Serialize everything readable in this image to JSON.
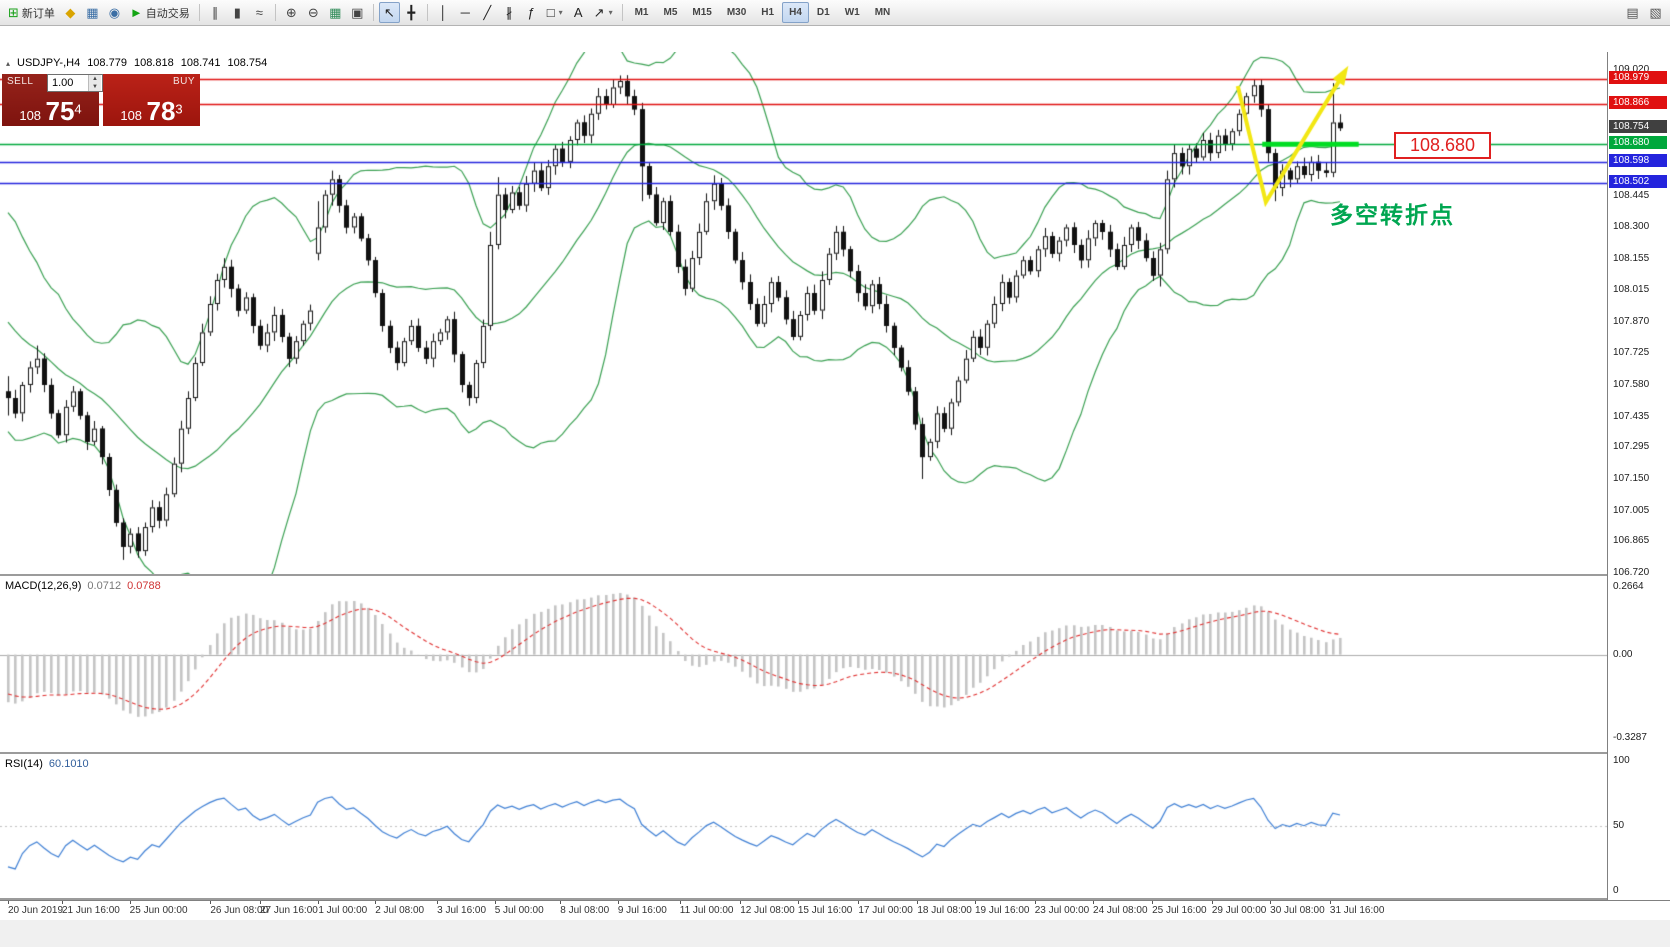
{
  "toolbar": {
    "items": [
      {
        "name": "new-order-button",
        "glyph": "⊞",
        "color": "#18a018",
        "label": "新订单"
      },
      {
        "name": "market-watch-button",
        "glyph": "◆",
        "color": "#d9a400"
      },
      {
        "name": "data-window-button",
        "glyph": "▦",
        "color": "#3a6ea5"
      },
      {
        "name": "navigator-button",
        "glyph": "◉",
        "color": "#3a6ea5"
      },
      {
        "name": "autotrading-button",
        "glyph": "►",
        "color": "#13a513",
        "label": "自动交易"
      },
      {
        "sep": true
      },
      {
        "name": "bar-chart-button",
        "glyph": "∥",
        "color": "#444"
      },
      {
        "name": "candlestick-chart-button",
        "glyph": "▮",
        "color": "#444"
      },
      {
        "name": "line-chart-button",
        "glyph": "≈",
        "color": "#444"
      },
      {
        "sep": true
      },
      {
        "name": "zoom-in-button",
        "glyph": "⊕",
        "color": "#444"
      },
      {
        "name": "zoom-out-button",
        "glyph": "⊖",
        "color": "#444"
      },
      {
        "name": "grid-button",
        "glyph": "▦",
        "color": "#2e8b57"
      },
      {
        "name": "tile-windows-button",
        "glyph": "▣",
        "color": "#444"
      },
      {
        "sep": true
      },
      {
        "name": "cursor-button",
        "glyph": "↖",
        "color": "#222",
        "active": true
      },
      {
        "name": "crosshair-button",
        "glyph": "╋",
        "color": "#222"
      },
      {
        "sep": true
      },
      {
        "name": "vertical-line-button",
        "glyph": "│",
        "color": "#222"
      },
      {
        "name": "horizontal-line-button",
        "glyph": "─",
        "color": "#222"
      },
      {
        "name": "trendline-button",
        "glyph": "╱",
        "color": "#222"
      },
      {
        "name": "channel-button",
        "glyph": "∦",
        "color": "#222"
      },
      {
        "name": "fibonacci-button",
        "glyph": "ƒ",
        "color": "#222"
      },
      {
        "name": "shapes-button",
        "glyph": "□",
        "color": "#222",
        "caret": true
      },
      {
        "name": "text-button",
        "glyph": "A",
        "color": "#222"
      },
      {
        "name": "arrows-button",
        "glyph": "↗",
        "color": "#222",
        "caret": true
      },
      {
        "sep": true
      },
      {
        "name": "tf-m1-button",
        "label": "M1",
        "tf": true
      },
      {
        "name": "tf-m5-button",
        "label": "M5",
        "tf": true
      },
      {
        "name": "tf-m15-button",
        "label": "M15",
        "tf": true
      },
      {
        "name": "tf-m30-button",
        "label": "M30",
        "tf": true
      },
      {
        "name": "tf-h1-button",
        "label": "H1",
        "tf": true
      },
      {
        "name": "tf-h4-button",
        "label": "H4",
        "tf": true,
        "active": true
      },
      {
        "name": "tf-d1-button",
        "label": "D1",
        "tf": true
      },
      {
        "name": "tf-w1-button",
        "label": "W1",
        "tf": true
      },
      {
        "name": "tf-mn-button",
        "label": "MN",
        "tf": true
      }
    ],
    "right_items": [
      {
        "name": "indicator-list-button",
        "glyph": "▤",
        "color": "#555"
      },
      {
        "name": "objects-list-button",
        "glyph": "▧",
        "color": "#555"
      }
    ]
  },
  "chart": {
    "quote_header": {
      "symbol": "USDJPY-,H4",
      "open": "108.779",
      "high": "108.818",
      "low": "108.741",
      "close": "108.754"
    },
    "one_click": {
      "sell_label": "SELL",
      "buy_label": "BUY",
      "volume": "1.00",
      "bid": {
        "prefix": "108",
        "big": "75",
        "pip": "4"
      },
      "ask": {
        "prefix": "108",
        "big": "78",
        "pip": "3"
      }
    }
  },
  "chart_data": {
    "type": "candlestick",
    "symbol": "USDJPY",
    "timeframe": "H4",
    "title": "USDJPY-,H4",
    "last_bar": {
      "open": 108.779,
      "high": 108.818,
      "low": 108.741,
      "close": 108.754
    },
    "y_axis": {
      "ticks": [
        109.02,
        108.445,
        108.3,
        108.155,
        108.015,
        107.87,
        107.725,
        107.58,
        107.435,
        107.295,
        107.15,
        107.005,
        106.865,
        106.72
      ]
    },
    "x_axis": {
      "labels": [
        {
          "t": "20 Jun 2019",
          "i": 0
        },
        {
          "t": "21 Jun 16:00",
          "i": 7.5
        },
        {
          "t": "25 Jun 00:00",
          "i": 16.9
        },
        {
          "t": "26 Jun 08:00",
          "i": 28.1
        },
        {
          "t": "27 Jun 16:00",
          "i": 35
        },
        {
          "t": "1 Jul 00:00",
          "i": 43.1
        },
        {
          "t": "2 Jul 08:00",
          "i": 51
        },
        {
          "t": "3 Jul 16:00",
          "i": 59.6
        },
        {
          "t": "5 Jul 00:00",
          "i": 67.6
        },
        {
          "t": "8 Jul 08:00",
          "i": 76.7
        },
        {
          "t": "9 Jul 16:00",
          "i": 84.7
        },
        {
          "t": "11 Jul 00:00",
          "i": 93.3
        },
        {
          "t": "12 Jul 08:00",
          "i": 101.7
        },
        {
          "t": "15 Jul 16:00",
          "i": 109.7
        },
        {
          "t": "17 Jul 00:00",
          "i": 118.1
        },
        {
          "t": "18 Jul 08:00",
          "i": 126.3
        },
        {
          "t": "19 Jul 16:00",
          "i": 134.3
        },
        {
          "t": "23 Jul 00:00",
          "i": 142.6
        },
        {
          "t": "24 Jul 08:00",
          "i": 150.7
        },
        {
          "t": "25 Jul 16:00",
          "i": 158.9
        },
        {
          "t": "29 Jul 00:00",
          "i": 167.2
        },
        {
          "t": "30 Jul 08:00",
          "i": 175.3
        },
        {
          "t": "31 Jul 16:00",
          "i": 183.6
        }
      ]
    },
    "warmup_closes": [
      108.3,
      108.25,
      108.28,
      108.2,
      108.12,
      108.15,
      108.05,
      107.98,
      108.02,
      107.92,
      107.85,
      107.88,
      107.78,
      107.72,
      107.75,
      107.65,
      107.58,
      107.62,
      107.52,
      107.5
    ],
    "closes": [
      107.52,
      107.45,
      107.58,
      107.66,
      107.7,
      107.58,
      107.45,
      107.35,
      107.48,
      107.55,
      107.44,
      107.32,
      107.38,
      107.25,
      107.1,
      106.95,
      106.84,
      106.9,
      106.82,
      106.93,
      107.02,
      106.96,
      107.08,
      107.22,
      107.38,
      107.52,
      107.68,
      107.82,
      107.95,
      108.06,
      108.12,
      108.02,
      107.92,
      107.98,
      107.85,
      107.76,
      107.82,
      107.9,
      107.8,
      107.7,
      107.78,
      107.86,
      107.92,
      108.3,
      108.45,
      108.52,
      108.4,
      108.3,
      108.35,
      108.25,
      108.15,
      108.0,
      107.85,
      107.75,
      107.68,
      107.78,
      107.85,
      107.75,
      107.7,
      107.78,
      107.82,
      107.88,
      107.72,
      107.58,
      107.52,
      107.68,
      107.85,
      108.22,
      108.45,
      108.38,
      108.46,
      108.4,
      108.5,
      108.56,
      108.48,
      108.58,
      108.66,
      108.6,
      108.7,
      108.78,
      108.72,
      108.82,
      108.9,
      108.86,
      108.94,
      108.97,
      108.9,
      108.84,
      108.58,
      108.45,
      108.32,
      108.42,
      108.28,
      108.12,
      108.02,
      108.16,
      108.28,
      108.42,
      108.5,
      108.4,
      108.28,
      108.15,
      108.05,
      107.95,
      107.86,
      107.95,
      108.05,
      107.98,
      107.88,
      107.8,
      107.9,
      108.0,
      107.92,
      108.06,
      108.18,
      108.28,
      108.2,
      108.1,
      108.0,
      107.94,
      108.04,
      107.95,
      107.85,
      107.75,
      107.66,
      107.55,
      107.4,
      107.25,
      107.32,
      107.45,
      107.38,
      107.5,
      107.6,
      107.7,
      107.8,
      107.75,
      107.86,
      107.95,
      108.05,
      107.98,
      108.08,
      108.15,
      108.1,
      108.2,
      108.26,
      108.18,
      108.24,
      108.3,
      108.22,
      108.15,
      108.25,
      108.32,
      108.28,
      108.2,
      108.12,
      108.22,
      108.3,
      108.24,
      108.16,
      108.08,
      108.2,
      108.52,
      108.64,
      108.58,
      108.66,
      108.62,
      108.7,
      108.64,
      108.72,
      108.68,
      108.74,
      108.82,
      108.9,
      108.95,
      108.84,
      108.64,
      108.48,
      108.56,
      108.52,
      108.58,
      108.54,
      108.6,
      108.56,
      108.55,
      108.78,
      108.754
    ],
    "special_bars": {
      "0": [
        107.55,
        107.62,
        107.44,
        107.52
      ],
      "4": [
        107.66,
        107.76,
        107.63,
        107.7
      ],
      "16": [
        106.95,
        106.97,
        106.78,
        106.84
      ],
      "18": [
        106.9,
        106.93,
        106.79,
        106.82
      ],
      "43": [
        108.18,
        108.42,
        108.15,
        108.3
      ],
      "45": [
        108.45,
        108.56,
        108.4,
        108.52
      ],
      "67": [
        107.85,
        108.28,
        107.83,
        108.22
      ],
      "68": [
        108.22,
        108.53,
        108.2,
        108.45
      ],
      "85": [
        108.94,
        108.995,
        108.91,
        108.97
      ],
      "88": [
        108.84,
        108.87,
        108.42,
        108.58
      ],
      "127": [
        107.4,
        107.43,
        107.15,
        107.25
      ],
      "160": [
        108.08,
        108.23,
        108.03,
        108.2
      ],
      "161": [
        108.2,
        108.56,
        108.18,
        108.52
      ],
      "173": [
        108.9,
        108.975,
        108.87,
        108.95
      ],
      "175": [
        108.84,
        108.86,
        108.6,
        108.64
      ],
      "176": [
        108.64,
        108.66,
        108.42,
        108.48
      ],
      "184": [
        108.55,
        108.96,
        108.53,
        108.78
      ],
      "185": [
        108.779,
        108.818,
        108.741,
        108.754
      ]
    },
    "price_tags": [
      {
        "text": "108.979",
        "price": 108.979,
        "bg": "#e01010"
      },
      {
        "text": "108.866",
        "price": 108.866,
        "bg": "#e01010"
      },
      {
        "text": "108.754",
        "price": 108.754,
        "bg": "#404040"
      },
      {
        "text": "108.680",
        "price": 108.68,
        "bg": "#00a83c"
      },
      {
        "text": "108.598",
        "price": 108.598,
        "bg": "#2424dd"
      },
      {
        "text": "108.502",
        "price": 108.502,
        "bg": "#2424dd"
      }
    ],
    "hlines": [
      {
        "price": 108.979,
        "color": "#e01010"
      },
      {
        "price": 108.866,
        "color": "#e01010"
      },
      {
        "price": 108.68,
        "color": "#00a83c"
      },
      {
        "price": 108.598,
        "color": "#2424dd"
      },
      {
        "price": 108.502,
        "color": "#2424dd"
      }
    ],
    "indicators": {
      "bollinger": {
        "period": 20,
        "deviation": 2,
        "color": "#3aa052"
      },
      "macd": {
        "title": "MACD(12,26,9)",
        "value_main": "0.0712",
        "value_signal": "0.0788",
        "scale_max": 0.2664,
        "scale_min": -0.3287,
        "scale_labels": [
          "0.2664",
          "0.00",
          "-0.3287"
        ],
        "hist_color": "#c4c4c4",
        "signal_color": "#e03030"
      },
      "rsi": {
        "title": "RSI(14)",
        "value": "60.1010",
        "scale_labels": [
          "100",
          "50",
          "0"
        ],
        "scale_values": [
          100,
          50,
          0
        ],
        "color": "#3e7fd4",
        "level": 50
      }
    },
    "annotations": {
      "price_callout": "108.680",
      "note_text": "多空转折点",
      "note_color": "#00a651",
      "arrow": {
        "color": "#f2e713",
        "points_ip": [
          [
            170.8,
            108.947
          ],
          [
            174.7,
            108.416
          ],
          [
            185.3,
            108.993
          ]
        ]
      },
      "highlight_segment": {
        "price": 108.68,
        "i_from": 174.2,
        "i_to": 187.6,
        "color": "#00dd22",
        "width": 5
      }
    }
  }
}
